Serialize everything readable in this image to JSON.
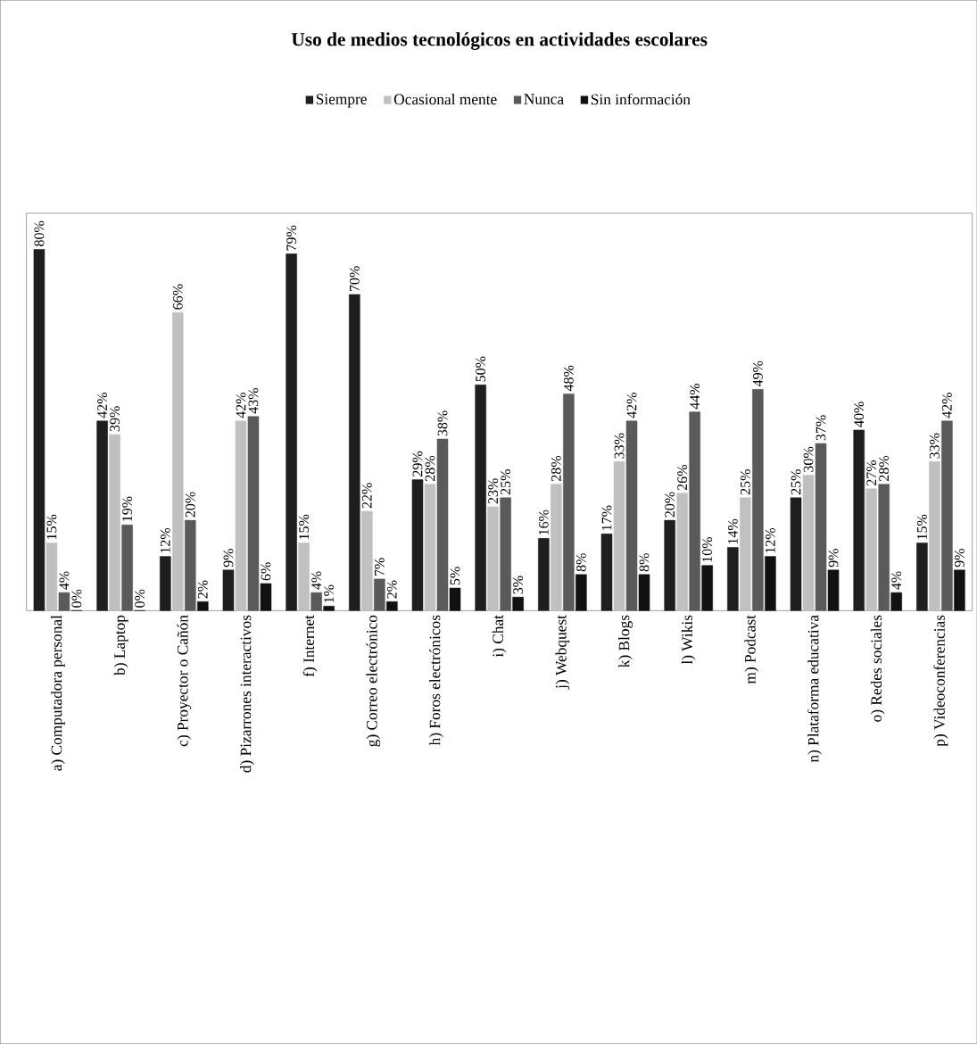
{
  "chart_data": {
    "type": "bar",
    "title": "Uso de medios tecnológicos en actividades escolares",
    "categories": [
      "a) Computadora personal",
      "b) Laptop",
      "c) Proyector o Cañón",
      "d) Pizarrones interactivos",
      "f) Internet",
      "g) Correo electrónico",
      "h) Foros electrónicos",
      "i) Chat",
      "j) Webquest",
      "k) Blogs",
      "l) Wikis",
      "m) Podcast",
      "n) Plataforma educativa",
      "o) Redes sociales",
      "p) Videoconferencias"
    ],
    "series": [
      {
        "name": "Siempre",
        "color": "#1e1e1e",
        "values": [
          80,
          42,
          12,
          9,
          79,
          70,
          29,
          50,
          16,
          17,
          20,
          14,
          25,
          40,
          15
        ],
        "value_labels": [
          "80%",
          "42%",
          "12%",
          "9%",
          "79%",
          "70%",
          "29%",
          "50%",
          "16%",
          "17%",
          "20%",
          "14%",
          "25%",
          "40%",
          "15%"
        ]
      },
      {
        "name": "Ocasional mente",
        "color": "#c0c0c0",
        "values": [
          15,
          39,
          66,
          42,
          15,
          22,
          28,
          23,
          28,
          33,
          26,
          25,
          30,
          27,
          33
        ],
        "value_labels": [
          "15%",
          "39%",
          "66%",
          "42%",
          "15%",
          "22%",
          "28%",
          "23%",
          "28%",
          "33%",
          "26%",
          "25%",
          "30%",
          "27%",
          "33%"
        ]
      },
      {
        "name": "Nunca",
        "color": "#5a5a5a",
        "values": [
          4,
          19,
          20,
          43,
          4,
          7,
          38,
          25,
          48,
          42,
          44,
          49,
          37,
          28,
          42
        ],
        "value_labels": [
          "4%",
          "19%",
          "20%",
          "43%",
          "4%",
          "7%",
          "38%",
          "25%",
          "48%",
          "42%",
          "44%",
          "49%",
          "37%",
          "28%",
          "42%"
        ]
      },
      {
        "name": "Sin información",
        "color": "#111111",
        "values": [
          0,
          0,
          2,
          6,
          1,
          2,
          5,
          3,
          8,
          8,
          10,
          12,
          9,
          4,
          9
        ],
        "value_labels": [
          "0%",
          "0%",
          "2%",
          "6%",
          "1%",
          "2%",
          "5%",
          "3%",
          "8%",
          "8%",
          "10%",
          "12%",
          "9%",
          "4%",
          "9%"
        ]
      }
    ],
    "legend": "top"
  }
}
